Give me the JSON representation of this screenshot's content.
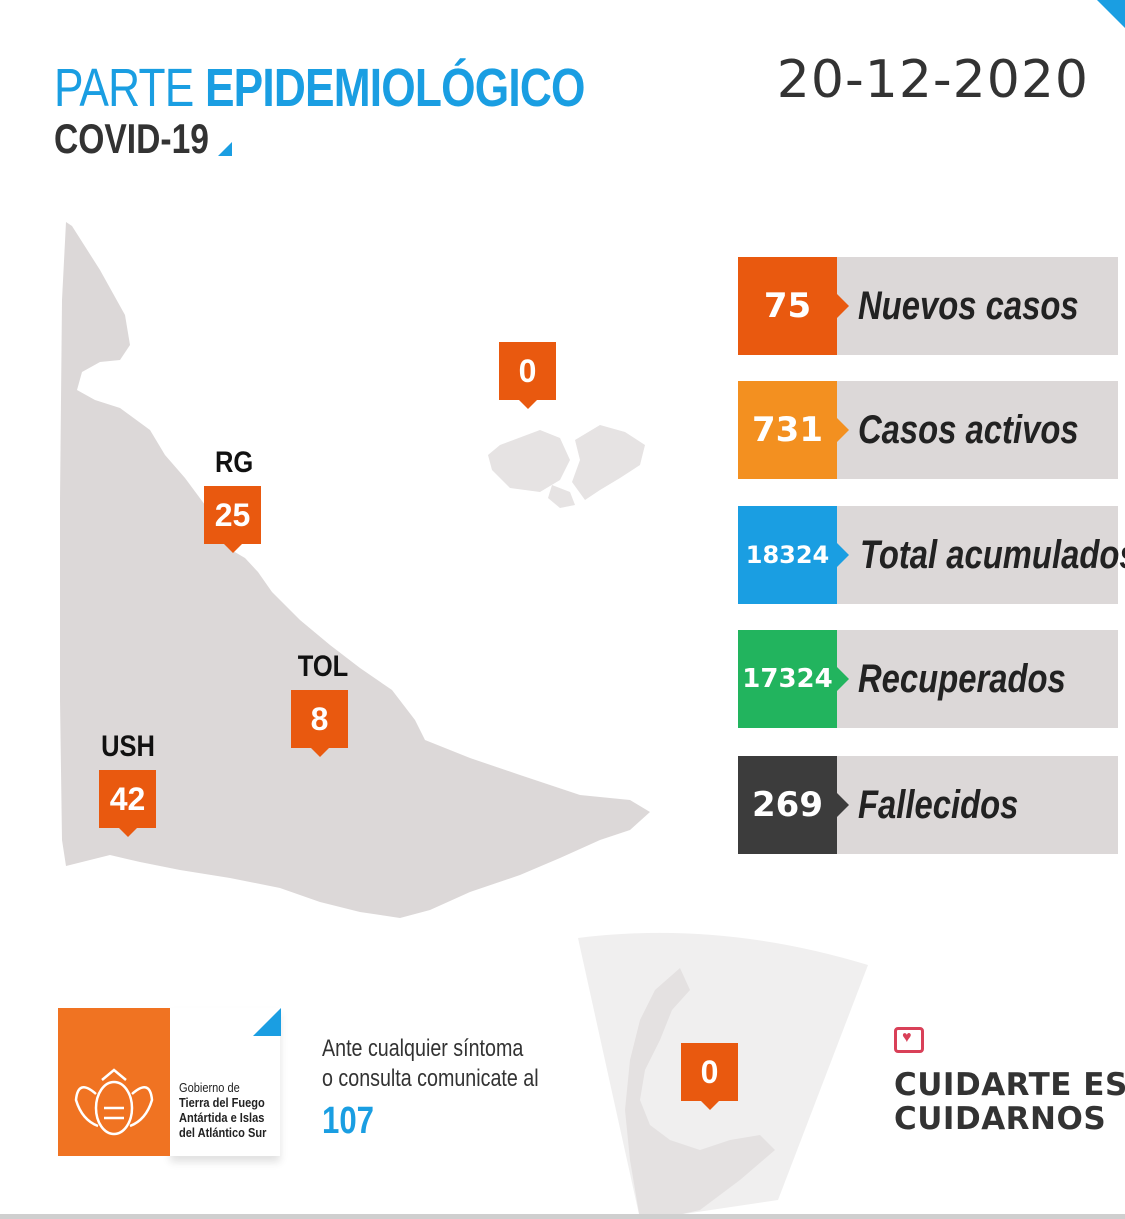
{
  "header": {
    "title_light": "PARTE",
    "title_bold": "EPIDEMIOLÓGICO",
    "subtitle": "COVID-19",
    "date": "20-12-2020"
  },
  "map": {
    "markers": [
      {
        "id": "rg",
        "label": "RG",
        "value": "25"
      },
      {
        "id": "tol",
        "label": "TOL",
        "value": "8"
      },
      {
        "id": "ush",
        "label": "USH",
        "value": "42"
      },
      {
        "id": "malvinas",
        "label": "",
        "value": "0"
      },
      {
        "id": "antartida",
        "label": "",
        "value": "0"
      }
    ]
  },
  "stats": [
    {
      "value": "75",
      "label": "Nuevos casos",
      "color": "#e9590f"
    },
    {
      "value": "731",
      "label": "Casos activos",
      "color": "#f39020"
    },
    {
      "value": "18324",
      "label": "Total acumulados",
      "color": "#1a9ee2"
    },
    {
      "value": "17324",
      "label": "Recuperados",
      "color": "#22b45e"
    },
    {
      "value": "269",
      "label": "Fallecidos",
      "color": "#3c3c3c"
    }
  ],
  "footer": {
    "gov_line1": "Gobierno de",
    "gov_line2": "Tierra del Fuego",
    "gov_line3": "Antártida e Islas",
    "gov_line4": "del Atlántico Sur",
    "contact_line1": "Ante cualquier síntoma",
    "contact_line2": "o consulta comunicate al",
    "phone": "107",
    "slogan_line1": "CUIDARTE ES",
    "slogan_line2": "CUIDARNOS"
  },
  "icons": {
    "emblem": "provincial-emblem-icon",
    "heart": "heart-chat-icon"
  }
}
